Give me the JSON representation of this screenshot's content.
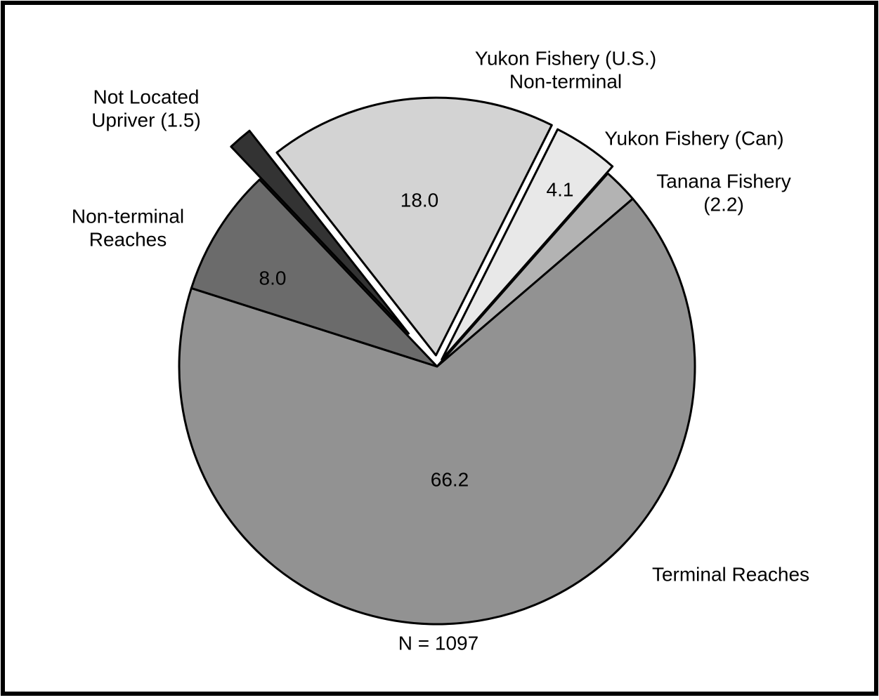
{
  "chart_data": {
    "type": "pie",
    "labels": [
      [
        "Yukon Fishery (U.S.)",
        "Non-terminal"
      ],
      [
        "Yukon Fishery (Can)"
      ],
      [
        "Tanana Fishery",
        "(2.2)"
      ],
      [
        "Terminal Reaches"
      ],
      [
        "Non-terminal",
        "Reaches"
      ],
      [
        "Not Located",
        "Upriver (1.5)"
      ]
    ],
    "values": [
      18.0,
      4.1,
      2.2,
      66.2,
      8.0,
      1.5
    ],
    "value_labels": [
      "18.0",
      "4.1",
      null,
      "66.2",
      "8.0",
      null
    ],
    "colors": [
      "#d3d3d3",
      "#e8e8e8",
      "#b3b3b3",
      "#929292",
      "#6b6b6b",
      "#333333"
    ],
    "note": "N = 1097"
  }
}
